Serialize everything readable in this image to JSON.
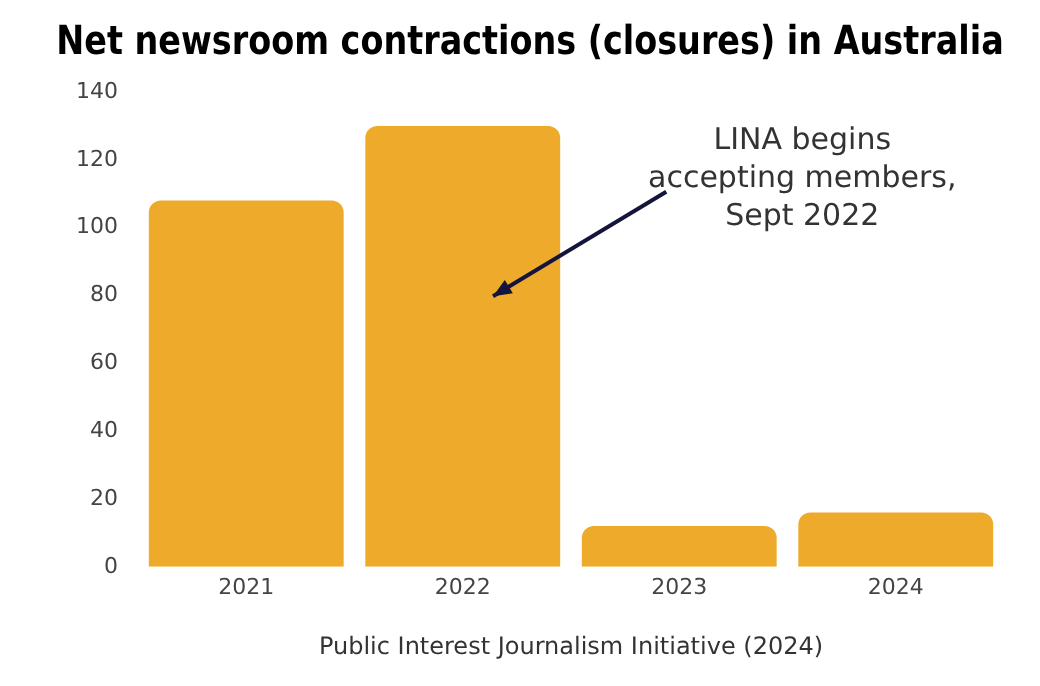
{
  "chart_data": {
    "type": "bar",
    "title": "Net newsroom contractions (closures) in Australia",
    "xlabel": "Public Interest Journalism Initiative (2024)",
    "categories": [
      "2021",
      "2022",
      "2023",
      "2024"
    ],
    "values": [
      108,
      130,
      12,
      16
    ],
    "color": "#eeaa2a",
    "ylim": [
      0,
      140
    ],
    "yticks": [
      0,
      20,
      40,
      60,
      80,
      100,
      120,
      140
    ],
    "grid": false,
    "annotations": [
      "LINA begins accepting members, Sept 2022"
    ]
  }
}
